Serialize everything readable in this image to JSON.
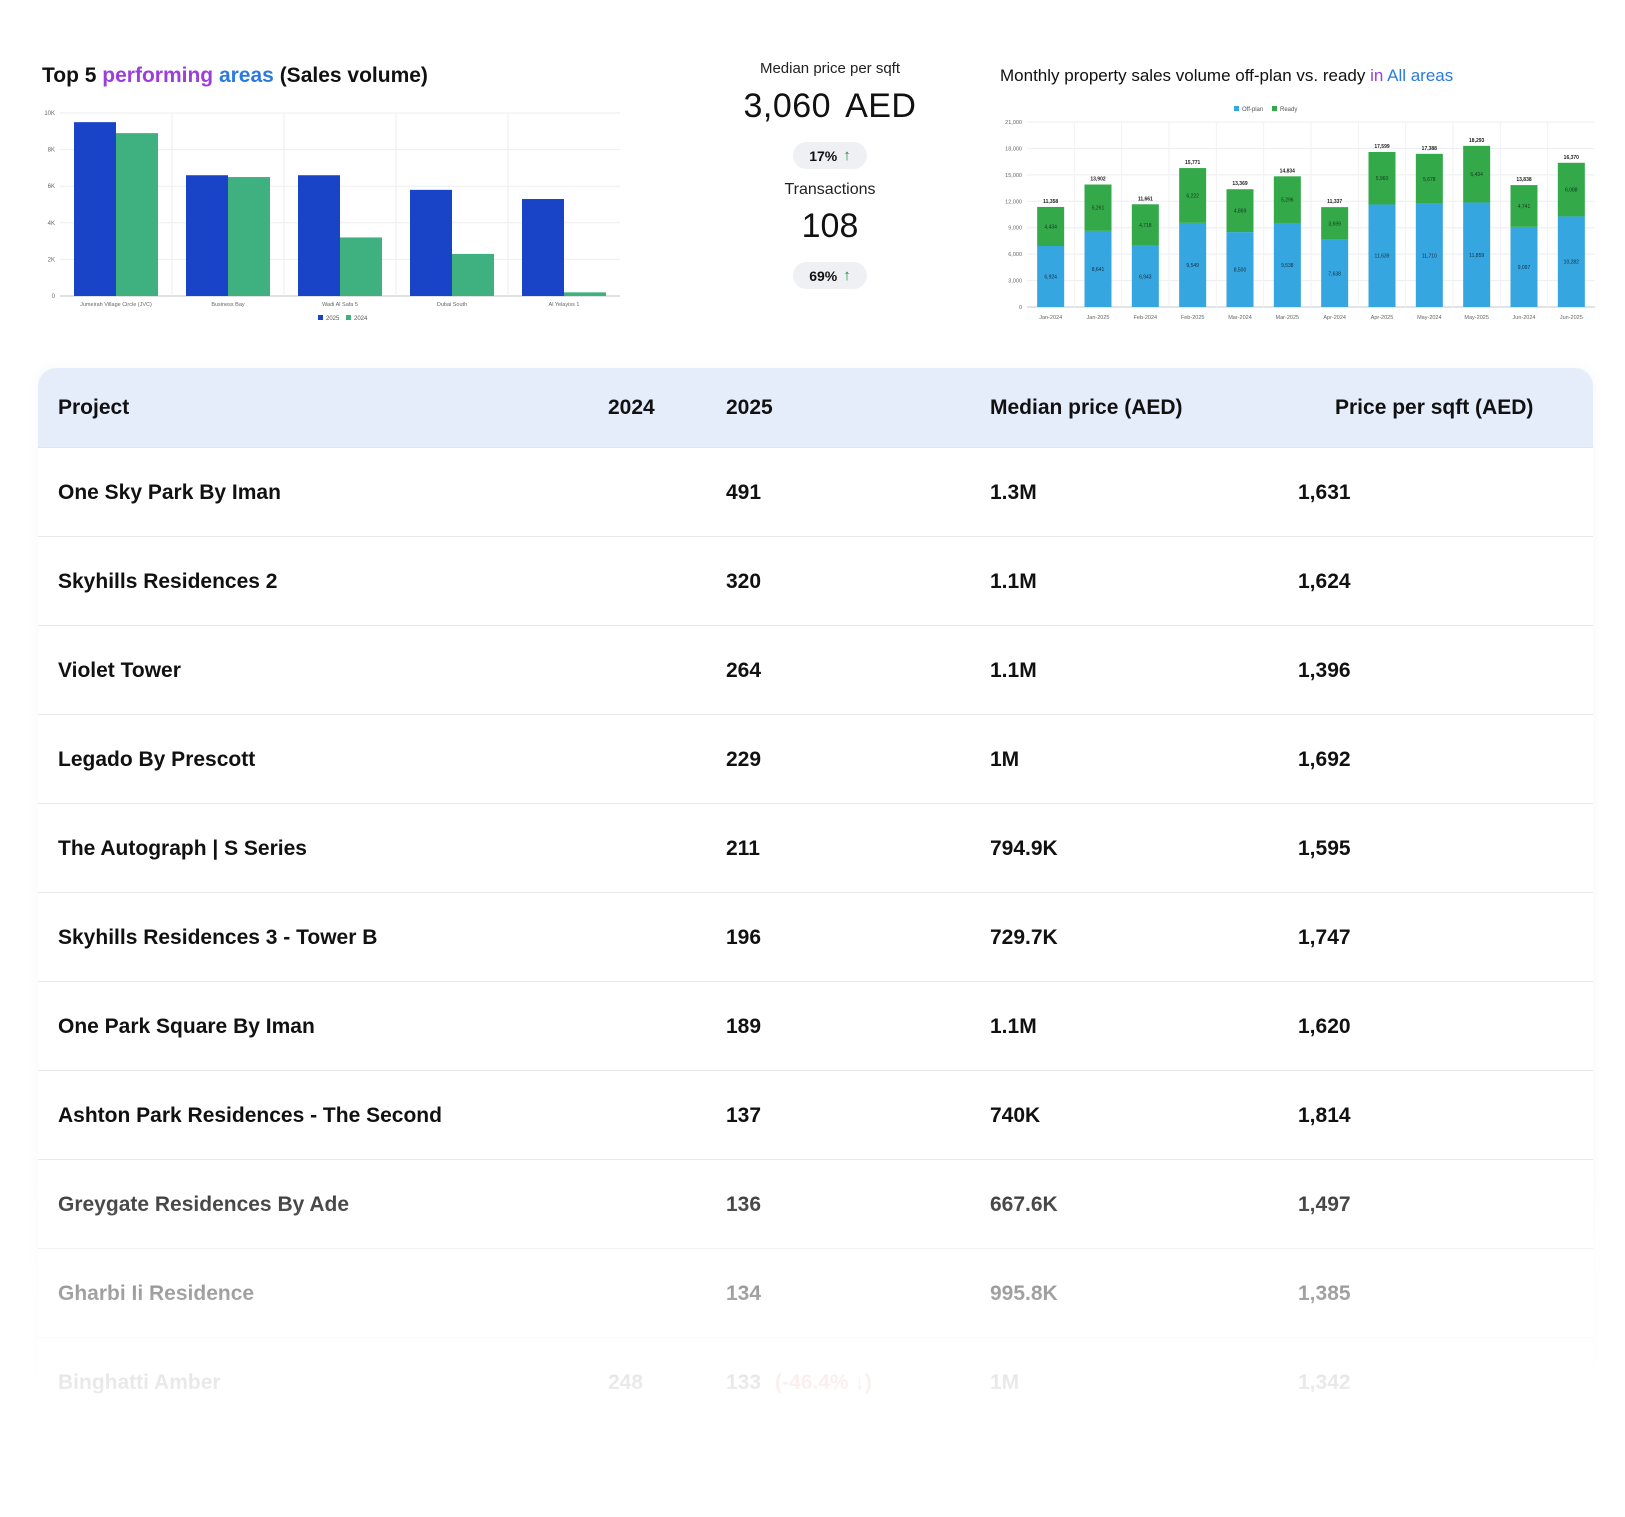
{
  "top_areas": {
    "title_prefix": "Top 5 ",
    "title_word1": "performing",
    "title_word2": " areas",
    "title_suffix": " (Sales volume)",
    "chart_data": {
      "type": "bar",
      "categories": [
        "Jumeirah Village Circle (JVC)",
        "Business Bay",
        "Wadi Al Safa 5",
        "Dubai South",
        "Al Yelayiss 1"
      ],
      "series": [
        {
          "name": "2025",
          "color": "#1a44c7",
          "values": [
            9500,
            6600,
            6600,
            5800,
            5300
          ]
        },
        {
          "name": "2024",
          "color": "#3fb07f",
          "values": [
            8900,
            6500,
            3200,
            2300,
            200
          ]
        }
      ],
      "yticks": [
        "0",
        "2K",
        "4K",
        "6K",
        "8K",
        "10K"
      ],
      "ylim": [
        0,
        10000
      ],
      "legend": [
        "2025",
        "2024"
      ]
    }
  },
  "kpi": {
    "median_label": "Median price per sqft",
    "median_value": "3,060",
    "median_unit": "AED",
    "median_change": "17%",
    "transactions_label": "Transactions",
    "transactions_value": "108",
    "transactions_change": "69%"
  },
  "monthly": {
    "title_prefix": "Monthly property sales volume off-plan vs. ready ",
    "title_in": "in",
    "title_area": " All areas",
    "chart_data": {
      "type": "bar",
      "stacked": true,
      "categories": [
        "Jan-2024",
        "Jan-2025",
        "Feb-2024",
        "Feb-2025",
        "Mar-2024",
        "Mar-2025",
        "Apr-2024",
        "Apr-2025",
        "May-2024",
        "May-2025",
        "Jun-2024",
        "Jun-2025"
      ],
      "series": [
        {
          "name": "Off-plan",
          "color": "#35a6df",
          "values": [
            6924,
            8641,
            6943,
            9549,
            8500,
            9538,
            7638,
            11639,
            11710,
            11859,
            9097,
            10282
          ],
          "labels": [
            "6,924",
            "8,641",
            "6,943",
            "9,549",
            "8,500",
            "9,538",
            "7,638",
            "11,639",
            "11,710",
            "11,859",
            "9,097",
            "10,282"
          ]
        },
        {
          "name": "Ready",
          "color": "#34a94a",
          "values": [
            4434,
            5261,
            4718,
            6222,
            4869,
            5296,
            3699,
            5960,
            5678,
            6434,
            4741,
            6088
          ],
          "labels": [
            "4,434",
            "5,261",
            "4,718",
            "6,222",
            "4,869",
            "5,296",
            "3,699",
            "5,960",
            "5,678",
            "6,434",
            "4,741",
            "6,088"
          ]
        }
      ],
      "totals": [
        "11,358",
        "13,902",
        "11,661",
        "15,771",
        "13,369",
        "14,834",
        "11,337",
        "17,599",
        "17,388",
        "18,293",
        "13,838",
        "16,370"
      ],
      "yticks": [
        "0",
        "3,000",
        "6,000",
        "9,000",
        "12,000",
        "15,000",
        "18,000",
        "21,000"
      ],
      "ylim": [
        0,
        21000
      ],
      "legend": [
        "Off-plan",
        "Ready"
      ]
    }
  },
  "table": {
    "headers": {
      "project": "Project",
      "y2024": "2024",
      "y2025": "2025",
      "median": "Median price (AED)",
      "psf": "Price per sqft (AED)"
    },
    "rows": [
      {
        "project": "One Sky Park By Iman",
        "y2024": "",
        "y2025": "491",
        "change": "",
        "median": "1.3M",
        "psf": "1,631"
      },
      {
        "project": "Skyhills Residences 2",
        "y2024": "",
        "y2025": "320",
        "change": "",
        "median": "1.1M",
        "psf": "1,624"
      },
      {
        "project": "Violet Tower",
        "y2024": "",
        "y2025": "264",
        "change": "",
        "median": "1.1M",
        "psf": "1,396"
      },
      {
        "project": "Legado By Prescott",
        "y2024": "",
        "y2025": "229",
        "change": "",
        "median": "1M",
        "psf": "1,692"
      },
      {
        "project": "The Autograph | S Series",
        "y2024": "",
        "y2025": "211",
        "change": "",
        "median": "794.9K",
        "psf": "1,595"
      },
      {
        "project": "Skyhills Residences 3 - Tower B",
        "y2024": "",
        "y2025": "196",
        "change": "",
        "median": "729.7K",
        "psf": "1,747"
      },
      {
        "project": "One Park Square By Iman",
        "y2024": "",
        "y2025": "189",
        "change": "",
        "median": "1.1M",
        "psf": "1,620"
      },
      {
        "project": "Ashton Park Residences - The Second",
        "y2024": "",
        "y2025": "137",
        "change": "",
        "median": "740K",
        "psf": "1,814"
      },
      {
        "project": "Greygate Residences By Ade",
        "y2024": "",
        "y2025": "136",
        "change": "",
        "median": "667.6K",
        "psf": "1,497"
      },
      {
        "project": "Gharbi Ii Residence",
        "y2024": "",
        "y2025": "134",
        "change": "",
        "median": "995.8K",
        "psf": "1,385"
      },
      {
        "project": "Binghatti Amber",
        "y2024": "248",
        "y2025": "133",
        "change": "(-46.4% ↓)",
        "median": "1M",
        "psf": "1,342"
      }
    ]
  }
}
